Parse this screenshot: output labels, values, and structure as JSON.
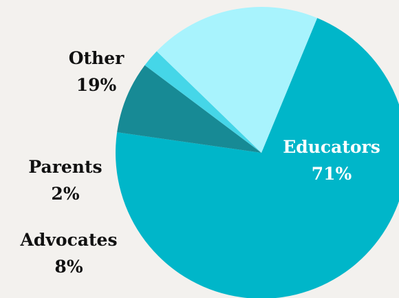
{
  "chart_data": {
    "type": "pie",
    "slices": [
      {
        "label": "Educators",
        "percent_label": "71%",
        "value": 71,
        "color": "#00b6c9",
        "label_color": "#ffffff"
      },
      {
        "label": "Advocates",
        "percent_label": "8%",
        "value": 8,
        "color": "#178a95",
        "label_color": "#111111"
      },
      {
        "label": "Parents",
        "percent_label": "2%",
        "value": 2,
        "color": "#45d6e8",
        "label_color": "#111111"
      },
      {
        "label": "Other",
        "percent_label": "19%",
        "value": 19,
        "color": "#a8f3fd",
        "label_color": "#111111"
      }
    ],
    "background": "#f3f1ee"
  }
}
